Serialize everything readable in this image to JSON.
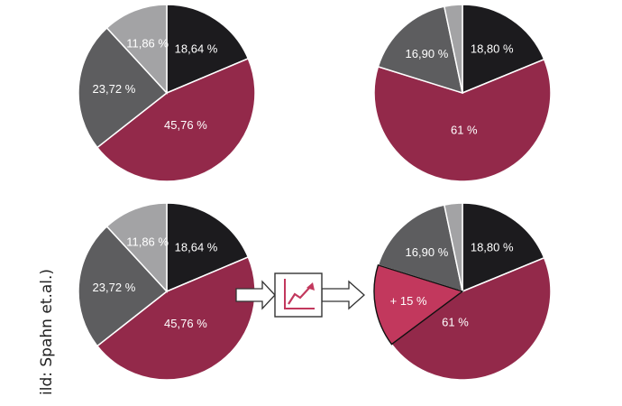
{
  "credit": "ild: Spahn et.al.)",
  "colors": {
    "black": "#1c1b1e",
    "crimson": "#93294a",
    "dark_gray": "#5d5d5f",
    "light_gray": "#a3a3a5",
    "highlight": "#c2385d",
    "arrow_icon": "#c2385d"
  },
  "icon": "rising-chart-icon",
  "chart_data": [
    {
      "type": "pie",
      "position": "top-left",
      "slices": [
        {
          "label": "18,64 %",
          "value": 18.64,
          "color": "black"
        },
        {
          "label": "45,76 %",
          "value": 45.76,
          "color": "crimson"
        },
        {
          "label": "23,72 %",
          "value": 23.72,
          "color": "dark_gray"
        },
        {
          "label": "11,86 %",
          "value": 11.86,
          "color": "light_gray"
        }
      ]
    },
    {
      "type": "pie",
      "position": "top-right",
      "slices": [
        {
          "label": "18,80 %",
          "value": 18.8,
          "color": "black"
        },
        {
          "label": "61 %",
          "value": 61,
          "color": "crimson"
        },
        {
          "label": "16,90 %",
          "value": 16.9,
          "color": "dark_gray"
        },
        {
          "label": "",
          "value": 3.3,
          "color": "light_gray"
        }
      ]
    },
    {
      "type": "pie",
      "position": "bottom-left",
      "slices": [
        {
          "label": "18,64 %",
          "value": 18.64,
          "color": "black"
        },
        {
          "label": "45,76 %",
          "value": 45.76,
          "color": "crimson"
        },
        {
          "label": "23,72 %",
          "value": 23.72,
          "color": "dark_gray"
        },
        {
          "label": "11,86 %",
          "value": 11.86,
          "color": "light_gray"
        }
      ]
    },
    {
      "type": "pie",
      "position": "bottom-right",
      "slices": [
        {
          "label": "18,80 %",
          "value": 18.8,
          "color": "black"
        },
        {
          "label": "61 %",
          "value": 61,
          "color": "crimson"
        },
        {
          "label": "16,90 %",
          "value": 16.9,
          "color": "dark_gray"
        },
        {
          "label": "",
          "value": 3.3,
          "color": "light_gray"
        }
      ],
      "highlight": {
        "label": "+ 15 %",
        "value": 15,
        "color": "highlight"
      }
    }
  ]
}
